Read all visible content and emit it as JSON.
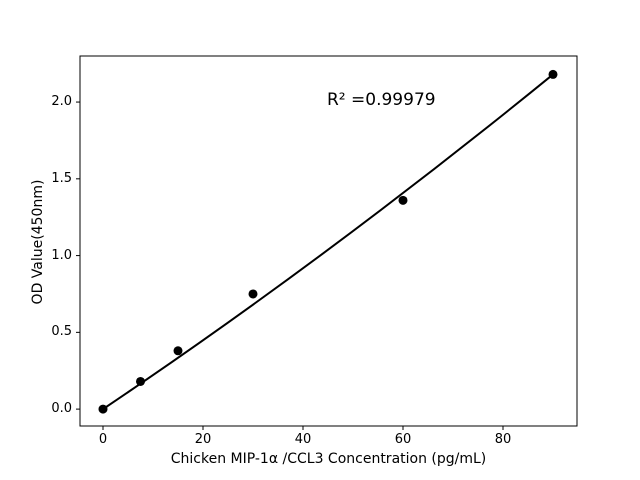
{
  "chart_data": {
    "type": "scatter",
    "title": "",
    "xlabel": "Chicken MIP-1α /CCL3 Concentration (pg/mL)",
    "ylabel": "OD Value(450nm)",
    "annotation": "R² =0.99979",
    "x_ticks": [
      {
        "v": 0,
        "label": "0"
      },
      {
        "v": 20,
        "label": "20"
      },
      {
        "v": 40,
        "label": "40"
      },
      {
        "v": 60,
        "label": "60"
      },
      {
        "v": 80,
        "label": "80"
      }
    ],
    "y_ticks": [
      {
        "v": 0.0,
        "label": "0.0"
      },
      {
        "v": 0.5,
        "label": "0.5"
      },
      {
        "v": 1.0,
        "label": "1.0"
      },
      {
        "v": 1.5,
        "label": "1.5"
      },
      {
        "v": 2.0,
        "label": "2.0"
      }
    ],
    "xlim": [
      -4.6,
      94.8
    ],
    "ylim": [
      -0.11,
      2.3
    ],
    "grid": false,
    "legend": "none",
    "points": [
      {
        "x": 0,
        "y": 0.0
      },
      {
        "x": 7.5,
        "y": 0.18
      },
      {
        "x": 15,
        "y": 0.38
      },
      {
        "x": 30,
        "y": 0.75
      },
      {
        "x": 60,
        "y": 1.36
      },
      {
        "x": 90,
        "y": 2.18
      }
    ],
    "fit_line": {
      "shape": "slightly-convex",
      "from": {
        "x": 0,
        "y": 0.0
      },
      "to": {
        "x": 90,
        "y": 2.18
      }
    },
    "colors": {
      "marker": "#000000",
      "line": "#000000",
      "axis": "#000000",
      "background": "#ffffff"
    }
  }
}
